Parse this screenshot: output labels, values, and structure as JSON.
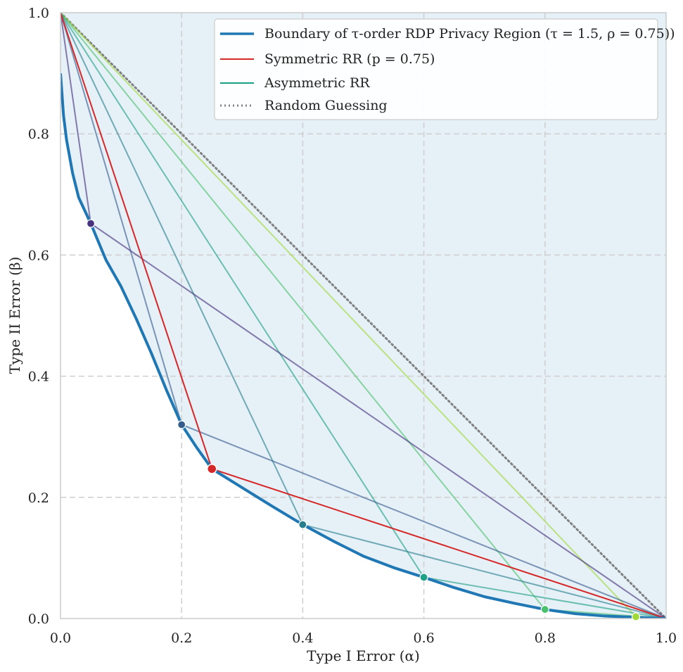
{
  "chart_data": {
    "type": "line",
    "title": "",
    "xlabel": "Type I Error (α)",
    "ylabel": "Type II Error (β)",
    "xlim": [
      0,
      1
    ],
    "ylim": [
      0,
      1
    ],
    "xticks": [
      "0.0",
      "0.2",
      "0.4",
      "0.6",
      "0.8",
      "1.0"
    ],
    "yticks": [
      "0.0",
      "0.2",
      "0.4",
      "0.6",
      "0.8",
      "1.0"
    ],
    "grid": true,
    "legend_position": "top-right",
    "legend": [
      {
        "label": "Boundary of τ-order RDP Privacy Region (τ = 1.5, ρ = 0.75))",
        "style": "solid-thick",
        "color": "#1f77b4"
      },
      {
        "label": "Symmetric RR (p = 0.75)",
        "style": "solid",
        "color": "#d62728"
      },
      {
        "label": "Asymmetric RR",
        "style": "solid",
        "color": "#16a085"
      },
      {
        "label": "Random Guessing",
        "style": "dotted",
        "color": "#808080"
      }
    ],
    "boundary": {
      "name": "Boundary of τ-order RDP Privacy Region",
      "color": "#1f77b4",
      "points": [
        [
          0,
          0.9
        ],
        [
          0.005,
          0.83
        ],
        [
          0.01,
          0.79
        ],
        [
          0.02,
          0.735
        ],
        [
          0.03,
          0.695
        ],
        [
          0.05,
          0.652
        ],
        [
          0.075,
          0.592
        ],
        [
          0.1,
          0.548
        ],
        [
          0.125,
          0.495
        ],
        [
          0.15,
          0.438
        ],
        [
          0.175,
          0.377
        ],
        [
          0.2,
          0.32
        ],
        [
          0.225,
          0.282
        ],
        [
          0.25,
          0.247
        ],
        [
          0.3,
          0.216
        ],
        [
          0.35,
          0.185
        ],
        [
          0.4,
          0.155
        ],
        [
          0.45,
          0.128
        ],
        [
          0.5,
          0.103
        ],
        [
          0.55,
          0.084
        ],
        [
          0.6,
          0.068
        ],
        [
          0.65,
          0.051
        ],
        [
          0.7,
          0.036
        ],
        [
          0.75,
          0.025
        ],
        [
          0.8,
          0.015
        ],
        [
          0.85,
          0.008
        ],
        [
          0.9,
          0.004
        ],
        [
          0.95,
          0.002
        ],
        [
          1.0,
          0.0
        ]
      ]
    },
    "symmetric_rr": {
      "name": "Symmetric RR (p = 0.75)",
      "color": "#d62728",
      "point": [
        0.25,
        0.247
      ]
    },
    "asymmetric_rr": [
      {
        "point": [
          0.05,
          0.652
        ],
        "color": "#46327e"
      },
      {
        "point": [
          0.2,
          0.32
        ],
        "color": "#365c8d"
      },
      {
        "point": [
          0.4,
          0.155
        ],
        "color": "#277f8e"
      },
      {
        "point": [
          0.6,
          0.068
        ],
        "color": "#1fa187"
      },
      {
        "point": [
          0.8,
          0.015
        ],
        "color": "#4ac16d"
      },
      {
        "point": [
          0.95,
          0.003
        ],
        "color": "#a0da39"
      }
    ],
    "random_guessing": {
      "name": "Random Guessing",
      "color": "#808080",
      "points": [
        [
          0,
          1
        ],
        [
          1,
          0
        ]
      ]
    }
  }
}
